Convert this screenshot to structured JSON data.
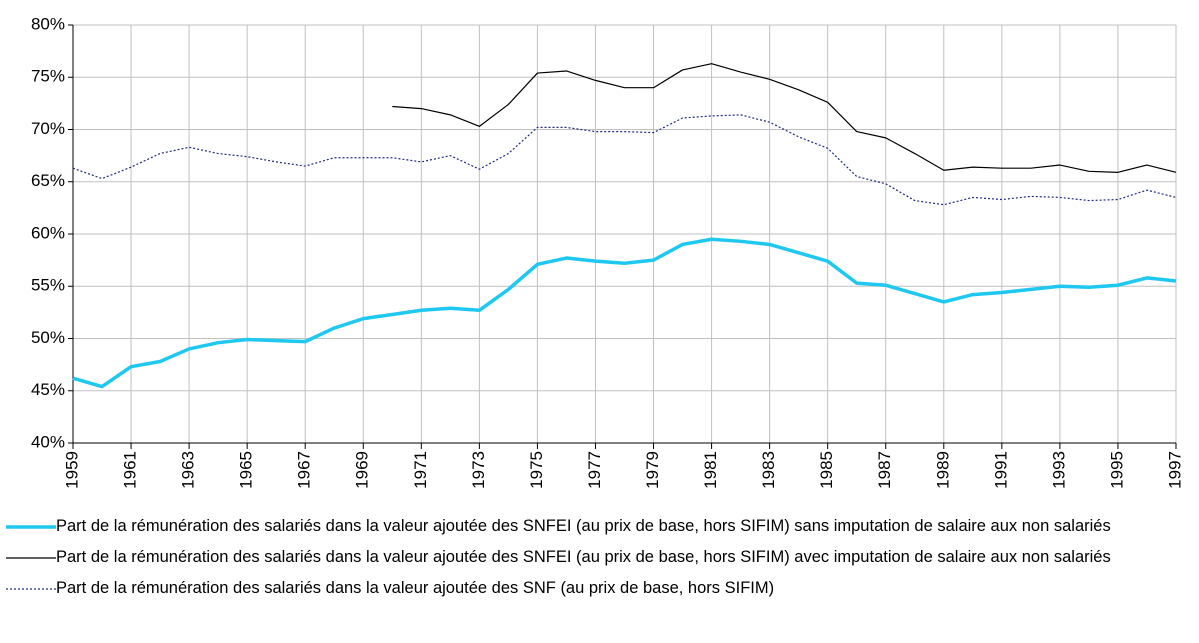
{
  "chart_data": {
    "type": "line",
    "x": [
      1959,
      1960,
      1961,
      1962,
      1963,
      1964,
      1965,
      1966,
      1967,
      1968,
      1969,
      1970,
      1971,
      1972,
      1973,
      1974,
      1975,
      1976,
      1977,
      1978,
      1979,
      1980,
      1981,
      1982,
      1983,
      1984,
      1985,
      1986,
      1987,
      1988,
      1989,
      1990,
      1991,
      1992,
      1993,
      1994,
      1995,
      1996,
      1997
    ],
    "series": [
      {
        "name": "Part de la rémunération des salariés dans la valeur ajoutée des SNFEI (au prix de base, hors SIFIM) sans imputation de salaire aux non salariés",
        "color": "#1ec8f0",
        "style": "thick",
        "values": [
          46.2,
          45.4,
          47.3,
          47.8,
          49.0,
          49.6,
          49.9,
          49.8,
          49.7,
          51.0,
          51.9,
          52.3,
          52.7,
          52.9,
          52.7,
          54.7,
          57.1,
          57.7,
          57.4,
          57.2,
          57.5,
          59.0,
          59.5,
          59.3,
          59.0,
          58.2,
          57.4,
          55.3,
          55.1,
          54.3,
          53.5,
          54.2,
          54.4,
          54.7,
          55.0,
          54.9,
          55.1,
          55.8,
          55.5
        ]
      },
      {
        "name": "Part de la rémunération des salariés dans la valeur ajoutée des SNFEI (au prix de base, hors SIFIM) avec imputation de salaire aux non salariés",
        "color": "#000000",
        "style": "solid",
        "values": [
          null,
          null,
          null,
          null,
          null,
          null,
          null,
          null,
          null,
          null,
          null,
          72.2,
          72.0,
          71.4,
          70.3,
          72.4,
          75.4,
          75.6,
          74.7,
          74.0,
          74.0,
          75.7,
          76.3,
          75.5,
          74.8,
          73.8,
          72.6,
          69.8,
          69.2,
          67.7,
          66.1,
          66.4,
          66.3,
          66.3,
          66.6,
          66.0,
          65.9,
          66.6,
          65.9
        ]
      },
      {
        "name": "Part de la rémunération des salariés dans la valeur ajoutée des SNF (au prix de base, hors SIFIM)",
        "color": "#1f2a80",
        "style": "dotted",
        "values": [
          66.3,
          65.3,
          66.4,
          67.7,
          68.3,
          67.7,
          67.4,
          66.9,
          66.5,
          67.3,
          67.3,
          67.3,
          66.9,
          67.5,
          66.2,
          67.7,
          70.2,
          70.2,
          69.8,
          69.8,
          69.7,
          71.1,
          71.3,
          71.4,
          70.7,
          69.3,
          68.2,
          65.5,
          64.8,
          63.2,
          62.8,
          63.5,
          63.3,
          63.6,
          63.5,
          63.2,
          63.3,
          64.2,
          63.5
        ]
      }
    ],
    "xlim": [
      1959,
      1997
    ],
    "xticks": [
      1959,
      1961,
      1963,
      1965,
      1967,
      1969,
      1971,
      1973,
      1975,
      1977,
      1979,
      1981,
      1983,
      1985,
      1987,
      1989,
      1991,
      1993,
      1995,
      1997
    ],
    "ylim": [
      40,
      80
    ],
    "yticks": [
      {
        "value": 40,
        "label": "40%"
      },
      {
        "value": 45,
        "label": "45%"
      },
      {
        "value": 50,
        "label": "50%"
      },
      {
        "value": 55,
        "label": "55%"
      },
      {
        "value": 60,
        "label": "60%"
      },
      {
        "value": 65,
        "label": "65%"
      },
      {
        "value": 70,
        "label": "70%"
      },
      {
        "value": 75,
        "label": "75%"
      },
      {
        "value": 80,
        "label": "80%"
      }
    ],
    "grid": true,
    "legend": "bottom"
  }
}
